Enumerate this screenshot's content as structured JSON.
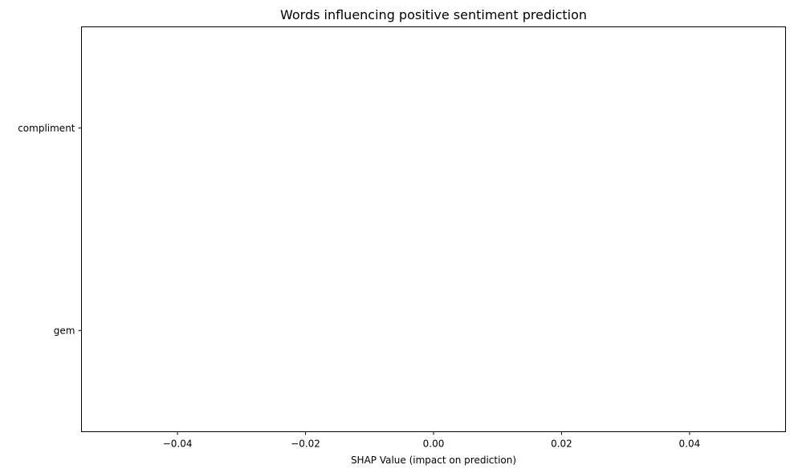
{
  "chart_data": {
    "type": "bar",
    "orientation": "horizontal",
    "title": "Words influencing positive sentiment prediction",
    "xlabel": "SHAP Value (impact on prediction)",
    "ylabel": "",
    "categories": [
      "compliment",
      "gem"
    ],
    "values": [
      0,
      0
    ],
    "xlim": [
      -0.055,
      0.055
    ],
    "ylim": [
      -0.5,
      1.5
    ],
    "xticks": [
      -0.04,
      -0.02,
      0.0,
      0.02,
      0.04
    ],
    "xtick_labels": [
      "−0.04",
      "−0.02",
      "0.00",
      "0.02",
      "0.04"
    ],
    "grid": false,
    "legend": "none"
  }
}
